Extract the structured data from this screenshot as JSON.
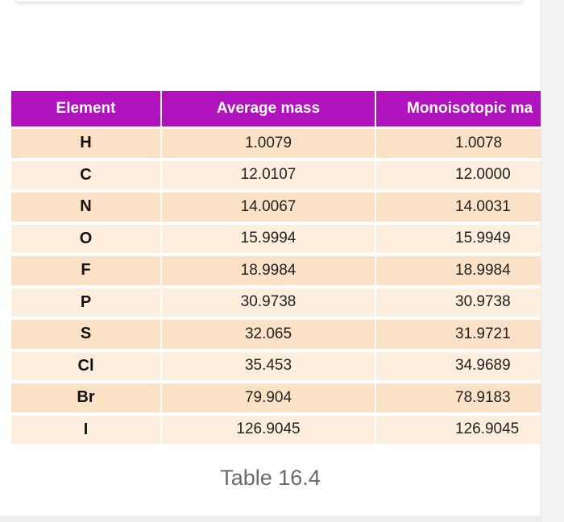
{
  "table": {
    "headers": [
      "Element",
      "Average mass",
      "Monoisotopic ma"
    ],
    "rows": [
      [
        "H",
        "1.0079",
        "1.0078"
      ],
      [
        "C",
        "12.0107",
        "12.0000"
      ],
      [
        "N",
        "14.0067",
        "14.0031"
      ],
      [
        "O",
        "15.9994",
        "15.9949"
      ],
      [
        "F",
        "18.9984",
        "18.9984"
      ],
      [
        "P",
        "30.9738",
        "30.9738"
      ],
      [
        "S",
        "32.065",
        "31.9721"
      ],
      [
        "Cl",
        "35.453",
        "34.9689"
      ],
      [
        "Br",
        "79.904",
        "78.9183"
      ],
      [
        "I",
        "126.9045",
        "126.9045"
      ]
    ]
  },
  "caption": "Table 16.4",
  "colors": {
    "header_bg": "#b012bd",
    "row_odd_bg": "#fbe2c6",
    "row_even_bg": "#fdeedd"
  }
}
